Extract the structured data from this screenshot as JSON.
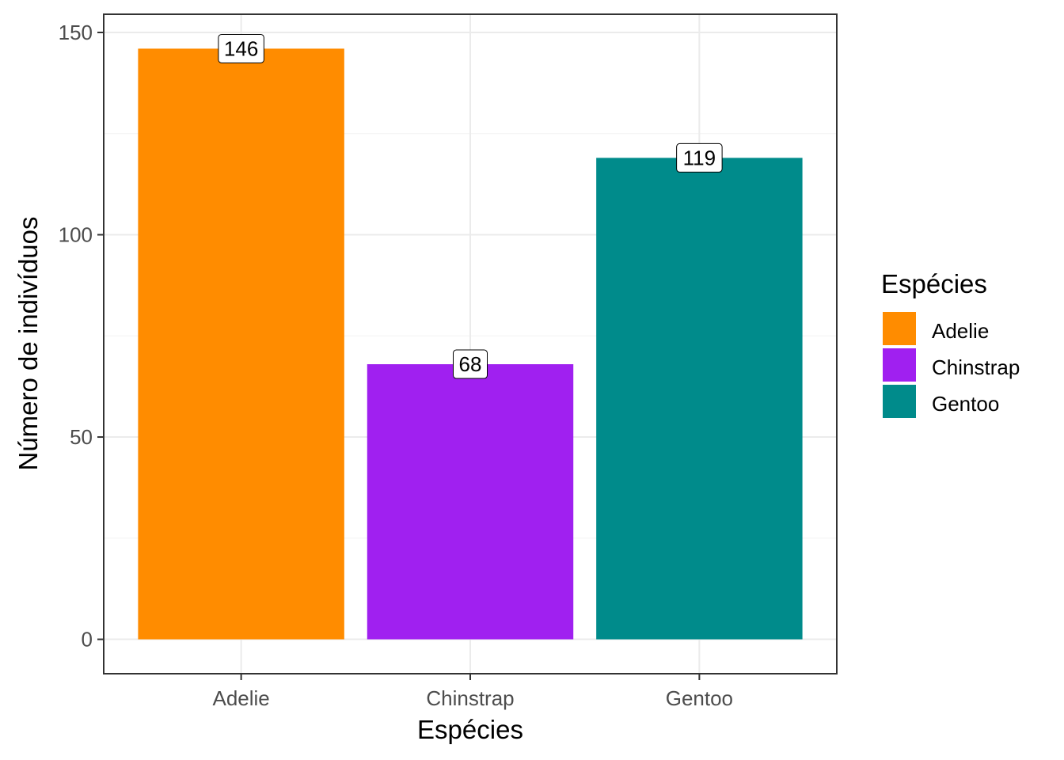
{
  "chart_data": {
    "type": "bar",
    "categories": [
      "Adelie",
      "Chinstrap",
      "Gentoo"
    ],
    "values": [
      146,
      68,
      119
    ],
    "data_labels": [
      "146",
      "68",
      "119"
    ],
    "colors": [
      "#FF8C00",
      "#A020F0",
      "#008B8B"
    ],
    "xlabel": "Espécies",
    "ylabel": "Número de indivíduos",
    "ylim": [
      -8.5,
      154.5
    ],
    "yticks": [
      0,
      50,
      100,
      150
    ],
    "ytick_labels": [
      "0",
      "50",
      "100",
      "150"
    ],
    "grid": true,
    "legend": {
      "title": "Espécies",
      "position": "right",
      "entries": [
        "Adelie",
        "Chinstrap",
        "Gentoo"
      ]
    }
  }
}
